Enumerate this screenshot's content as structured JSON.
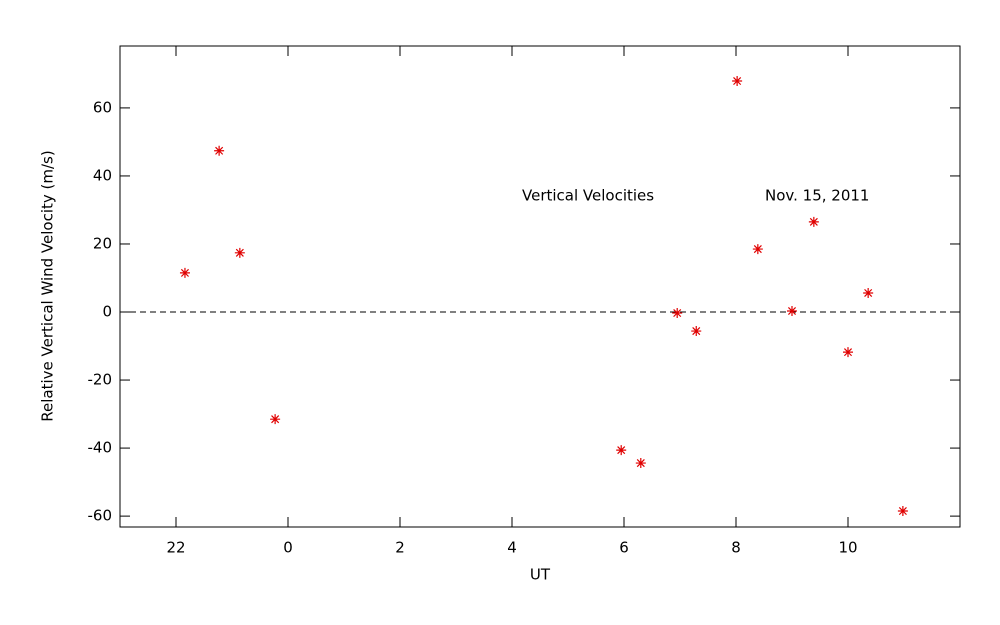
{
  "chart_data": {
    "type": "scatter",
    "xlabel": "UT",
    "ylabel": "Relative Vertical Wind Velocity (m/s)",
    "annotations": [
      "Vertical Velocities",
      "Nov. 15, 2011"
    ],
    "color": "#e00000",
    "marker": "asterisk",
    "reference_line": 0,
    "x": [
      -1.84,
      -1.23,
      -0.86,
      -0.23,
      5.95,
      6.3,
      6.95,
      7.29,
      8.02,
      8.39,
      9.0,
      9.39,
      10.0,
      10.36,
      10.98
    ],
    "values": [
      11.5,
      47.4,
      17.4,
      -31.5,
      -40.6,
      -44.4,
      -0.3,
      -5.6,
      67.9,
      18.5,
      0.3,
      26.5,
      -11.8,
      5.6,
      -58.5
    ],
    "xlim": [
      -3,
      12
    ],
    "xticks": [
      {
        "value": -2,
        "label": "22"
      },
      0,
      2,
      4,
      6,
      8,
      10
    ],
    "ylim": [
      -63.2,
      78.2
    ],
    "yticks": [
      -60,
      -40,
      -20,
      0,
      20,
      40,
      60
    ]
  }
}
